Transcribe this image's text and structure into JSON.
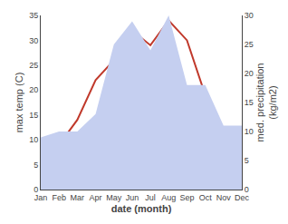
{
  "chart_data": {
    "type": "line",
    "categories": [
      "Jan",
      "Feb",
      "Mar",
      "Apr",
      "May",
      "Jun",
      "Jul",
      "Aug",
      "Sep",
      "Oct",
      "Nov",
      "Dec"
    ],
    "series": [
      {
        "type": "area",
        "axis": "y2",
        "color": "#c5cff0",
        "values": [
          9,
          10,
          10,
          13,
          25,
          29,
          24,
          30,
          18,
          18,
          11,
          11
        ]
      },
      {
        "type": "line",
        "color": "#c0392b",
        "values": [
          4.5,
          9.0,
          14.0,
          22.0,
          26.0,
          32.0,
          29.0,
          34.0,
          30.0,
          19.0,
          12.0,
          12.0
        ]
      }
    ],
    "xlabel": "date (month)",
    "ylabel": "max temp (C)",
    "y2label": "med. precipitation\n(kg/m2)",
    "ylim": [
      0,
      35
    ],
    "yticks": [
      0,
      5,
      10,
      15,
      20,
      25,
      30,
      35
    ],
    "y2lim": [
      0,
      30
    ],
    "y2ticks": [
      0,
      5,
      10,
      15,
      20,
      25,
      30
    ],
    "grid": false
  }
}
